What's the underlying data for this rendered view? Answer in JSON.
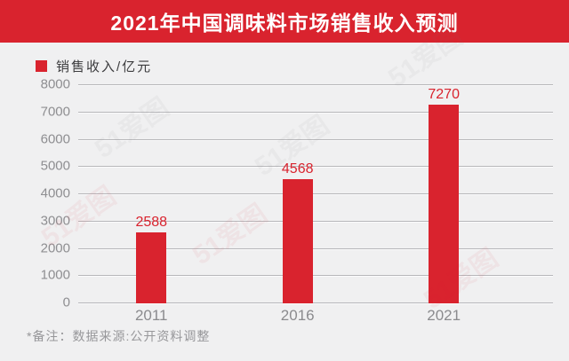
{
  "chart_data": {
    "type": "bar",
    "title": "2021年中国调味料市场销售收入预测",
    "legend": "销售收入/亿元",
    "categories": [
      "2011",
      "2016",
      "2021"
    ],
    "values": [
      2588,
      4568,
      7270
    ],
    "yticks": [
      0,
      1000,
      2000,
      3000,
      4000,
      5000,
      6000,
      7000,
      8000
    ],
    "ylim": [
      0,
      8000
    ],
    "xlabel": "",
    "ylabel": "",
    "grid": true,
    "legend_position": "top-left",
    "bar_color": "#d9232e"
  },
  "footnote": "*备注：数据来源:公开资料调整",
  "watermark_text": "51爱图",
  "colors": {
    "banner_background": "#d9232e",
    "page_background": "#f0f0f1",
    "title_text": "#ffffff",
    "value_label": "#d9232e",
    "axis_text": "#8e8e91",
    "legend_text": "#3c3c3e",
    "gridline": "#b7b7ba"
  }
}
